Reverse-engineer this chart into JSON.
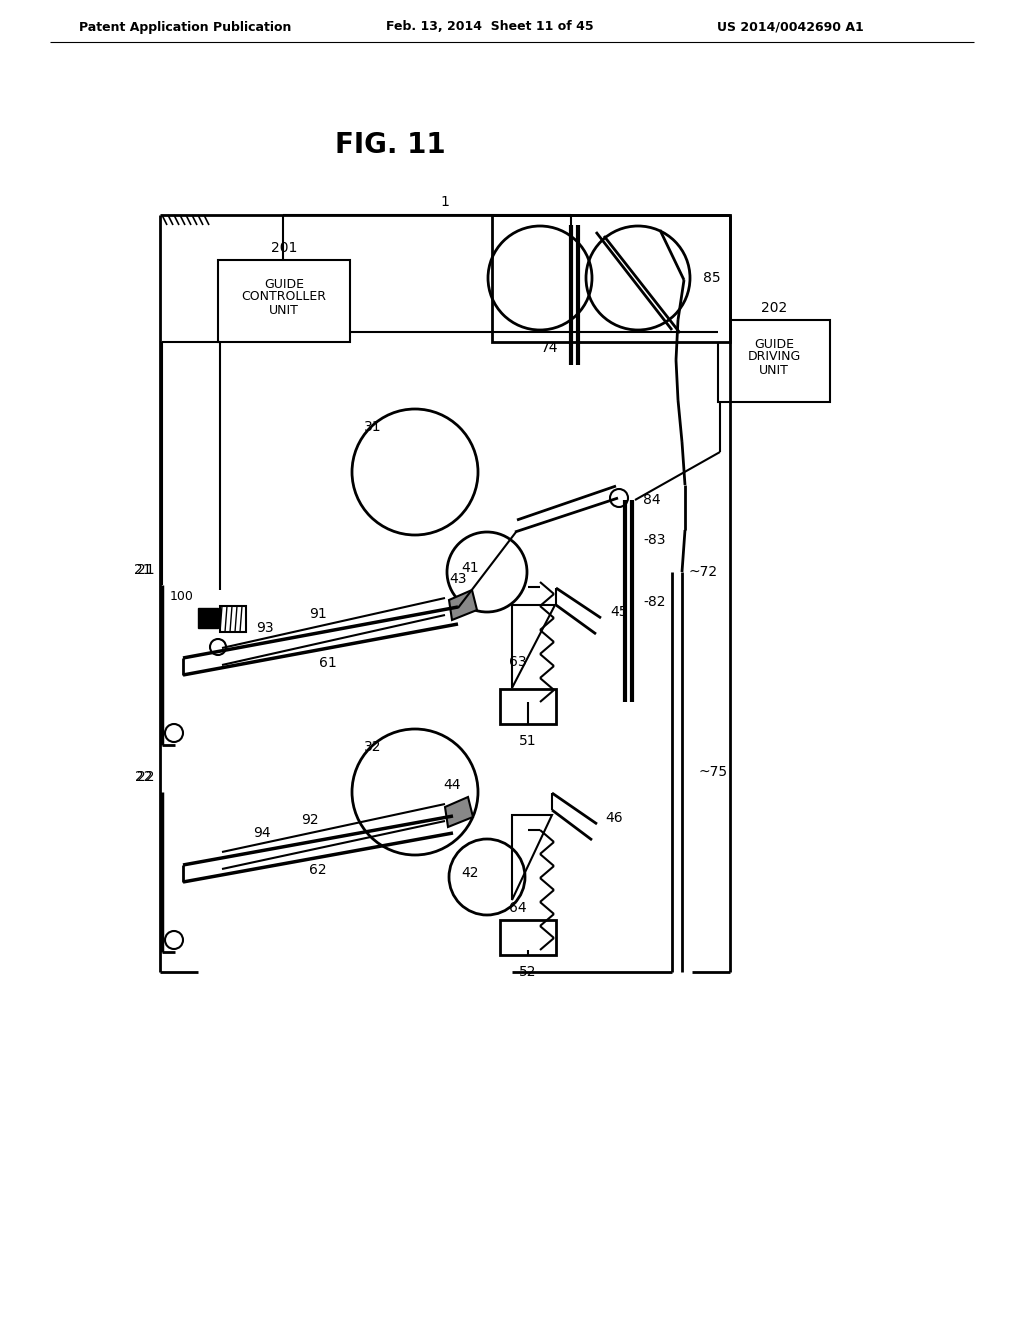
{
  "header_left": "Patent Application Publication",
  "header_center": "Feb. 13, 2014  Sheet 11 of 45",
  "header_right": "US 2014/0042690 A1",
  "title": "FIG. 11",
  "bg_color": "#ffffff"
}
